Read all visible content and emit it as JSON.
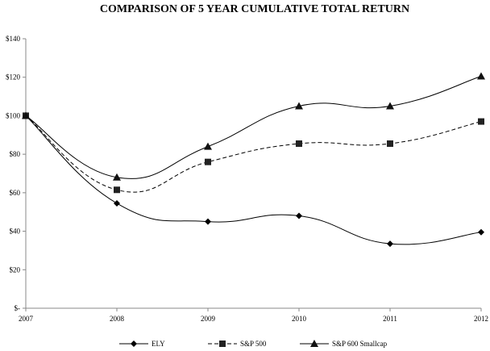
{
  "chart_data": {
    "type": "line",
    "title": "COMPARISON OF 5 YEAR CUMULATIVE TOTAL RETURN",
    "xlabel": "",
    "ylabel": "",
    "x": [
      "2007",
      "2008",
      "2009",
      "2010",
      "2011",
      "2012"
    ],
    "ylim": [
      0,
      140
    ],
    "yticks": [
      {
        "value": 0,
        "label": "$-"
      },
      {
        "value": 20,
        "label": "$20"
      },
      {
        "value": 40,
        "label": "$40"
      },
      {
        "value": 60,
        "label": "$60"
      },
      {
        "value": 80,
        "label": "$80"
      },
      {
        "value": 100,
        "label": "$100"
      },
      {
        "value": 120,
        "label": "$120"
      },
      {
        "value": 140,
        "label": "$140"
      }
    ],
    "grid": false,
    "legend_position": "bottom",
    "series": [
      {
        "name": "ELY",
        "marker": "diamond",
        "dash": "solid",
        "values": [
          100,
          54.5,
          45,
          48,
          33.5,
          39.5
        ]
      },
      {
        "name": "S&P 500",
        "marker": "square",
        "dash": "dashed",
        "values": [
          100,
          61.5,
          76,
          85.5,
          85.5,
          97
        ]
      },
      {
        "name": "S&P 600 Smallcap",
        "marker": "triangle",
        "dash": "solid",
        "values": [
          100,
          68,
          84,
          105,
          105,
          120.5
        ]
      }
    ]
  }
}
